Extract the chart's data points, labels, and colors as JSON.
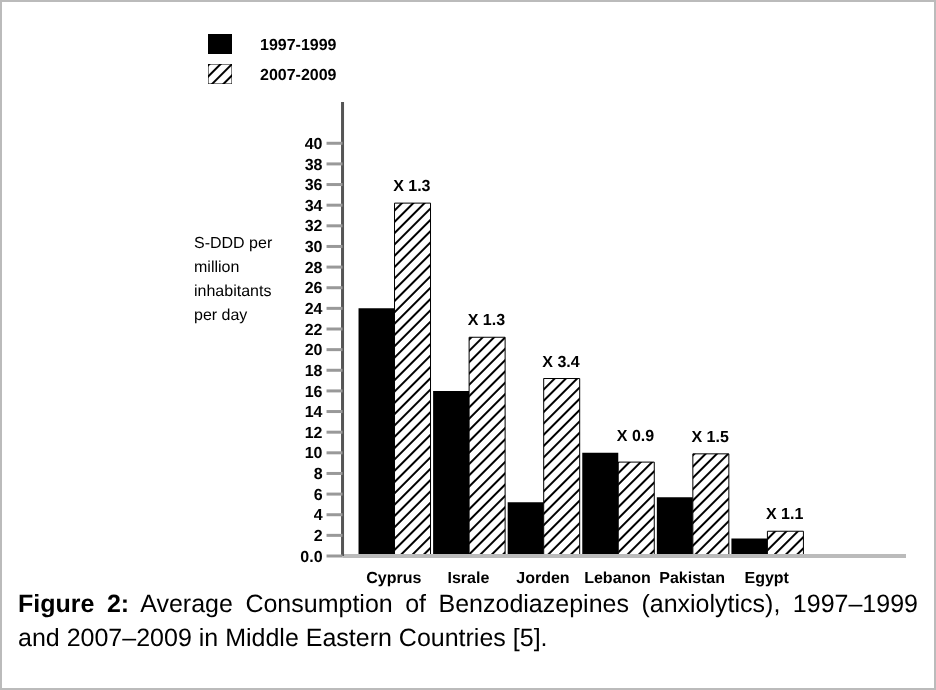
{
  "chart_data": {
    "type": "bar",
    "ylabel": "S-DDD per million inhabitants per day",
    "categories": [
      "Cyprus",
      "Israle",
      "Jorden",
      "Lebanon",
      "Pakistan",
      "Egypt"
    ],
    "series": [
      {
        "name": "1997-1999",
        "color": "#000000",
        "values": [
          24,
          16,
          5.2,
          10,
          5.7,
          1.7
        ]
      },
      {
        "name": "2007-2009",
        "color": "#000000",
        "values": [
          34.2,
          21.2,
          17.2,
          9.1,
          9.9,
          2.4
        ]
      }
    ],
    "ylim": [
      0,
      44
    ],
    "yticks": [
      {
        "value": 0,
        "label": "0.0"
      },
      2,
      4,
      6,
      8,
      10,
      12,
      14,
      16,
      18,
      20,
      22,
      24,
      26,
      28,
      30,
      32,
      34,
      36,
      38,
      40
    ],
    "grid": false,
    "legend": "top left",
    "annotations": [
      {
        "text": "X 1.3",
        "x": "Cyprus",
        "y": 34.2
      },
      {
        "text": "X 1.3",
        "x": "Israle",
        "y": 21.2
      },
      {
        "text": "X 3.4",
        "x": "Jorden",
        "y": 17.2
      },
      {
        "text": "X 0.9",
        "x": "Lebanon",
        "y": 10
      },
      {
        "text": "X 1.5",
        "x": "Pakistan",
        "y": 9.9
      },
      {
        "text": "X 1.1",
        "x": "Egypt",
        "y": 2.4
      },
      "Figure 2: Average Consumption of Benzodiazepines (anxiolytics), 1997–1999 and 2007–2009 in Middle Eastern Countries [5]."
    ]
  }
}
